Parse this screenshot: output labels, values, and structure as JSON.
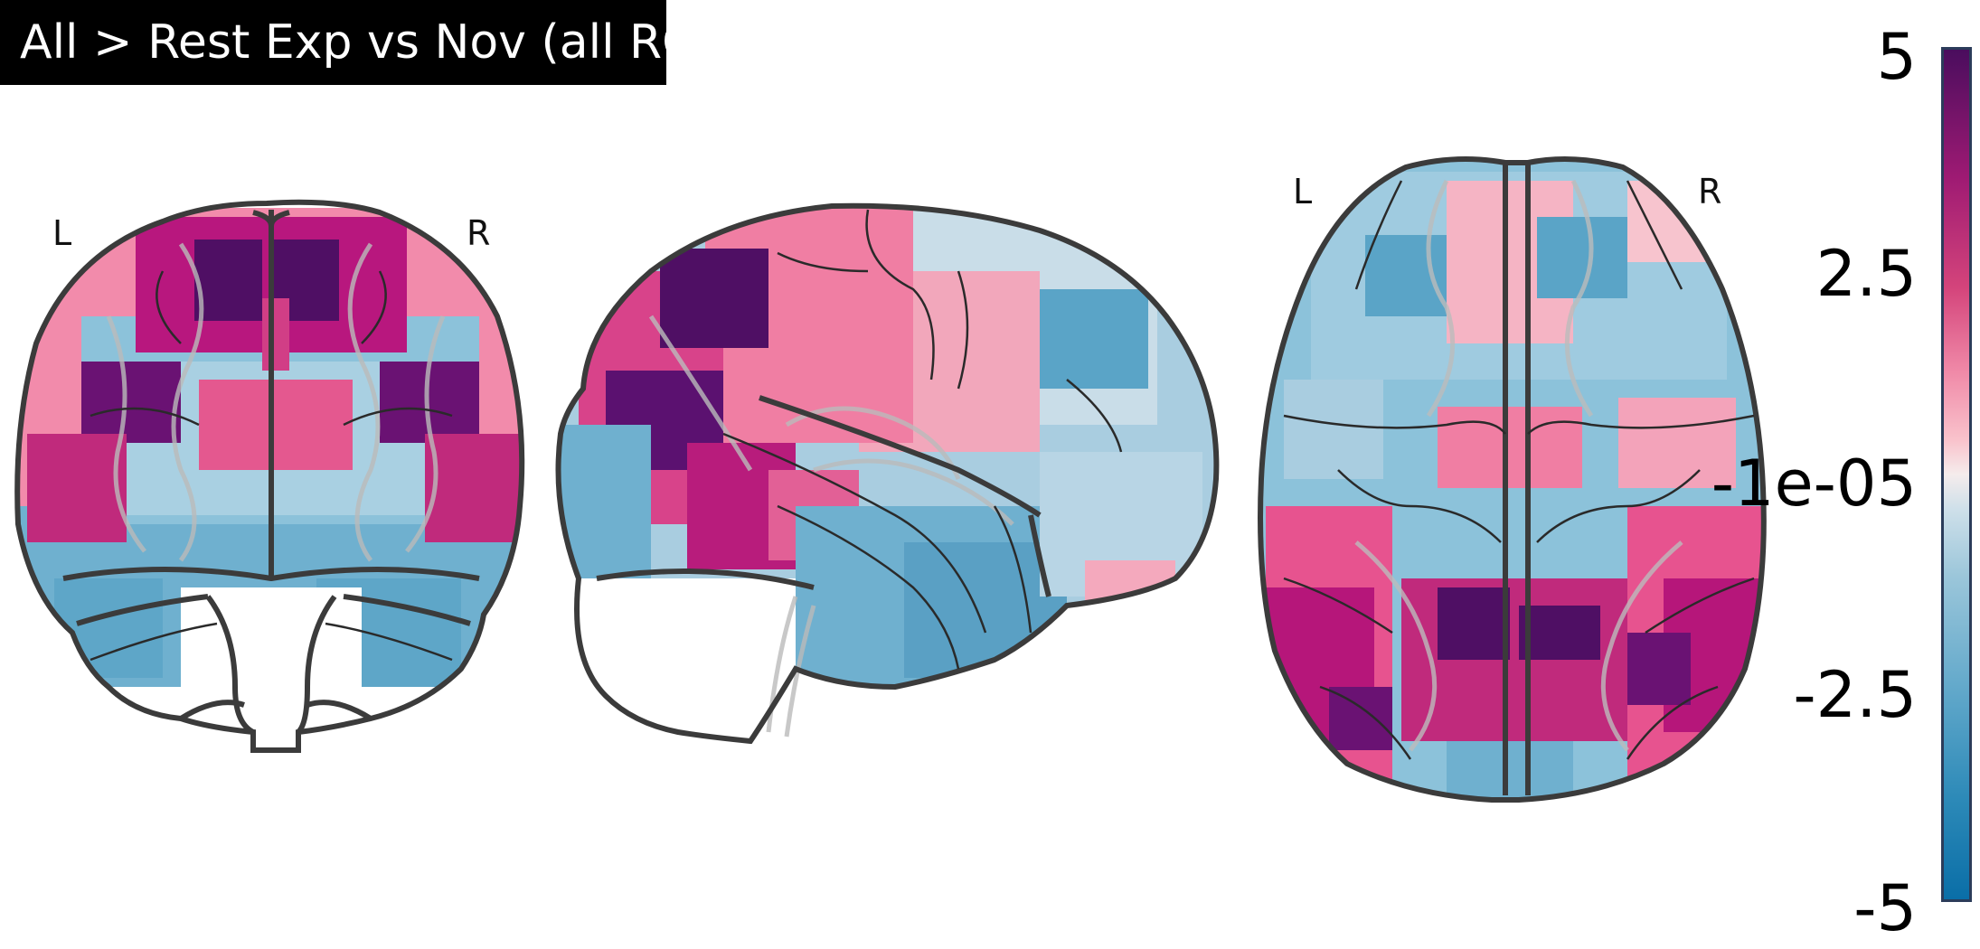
{
  "title": "All > Rest Exp vs Nov (all ROIs)",
  "views": {
    "coronal": {
      "left_label": "L",
      "right_label": "R"
    },
    "axial": {
      "left_label": "L",
      "right_label": "R"
    }
  },
  "colorbar": {
    "ticks": [
      "5",
      "2.5",
      "-1e-05",
      "-2.5",
      "-5"
    ],
    "vmax": 5,
    "vmin": -5,
    "colors": {
      "max": "#4a0d5e",
      "high": "#d4447b",
      "mid": "#f5ecec",
      "low": "#63a9cb",
      "min": "#0a6ea7"
    }
  }
}
